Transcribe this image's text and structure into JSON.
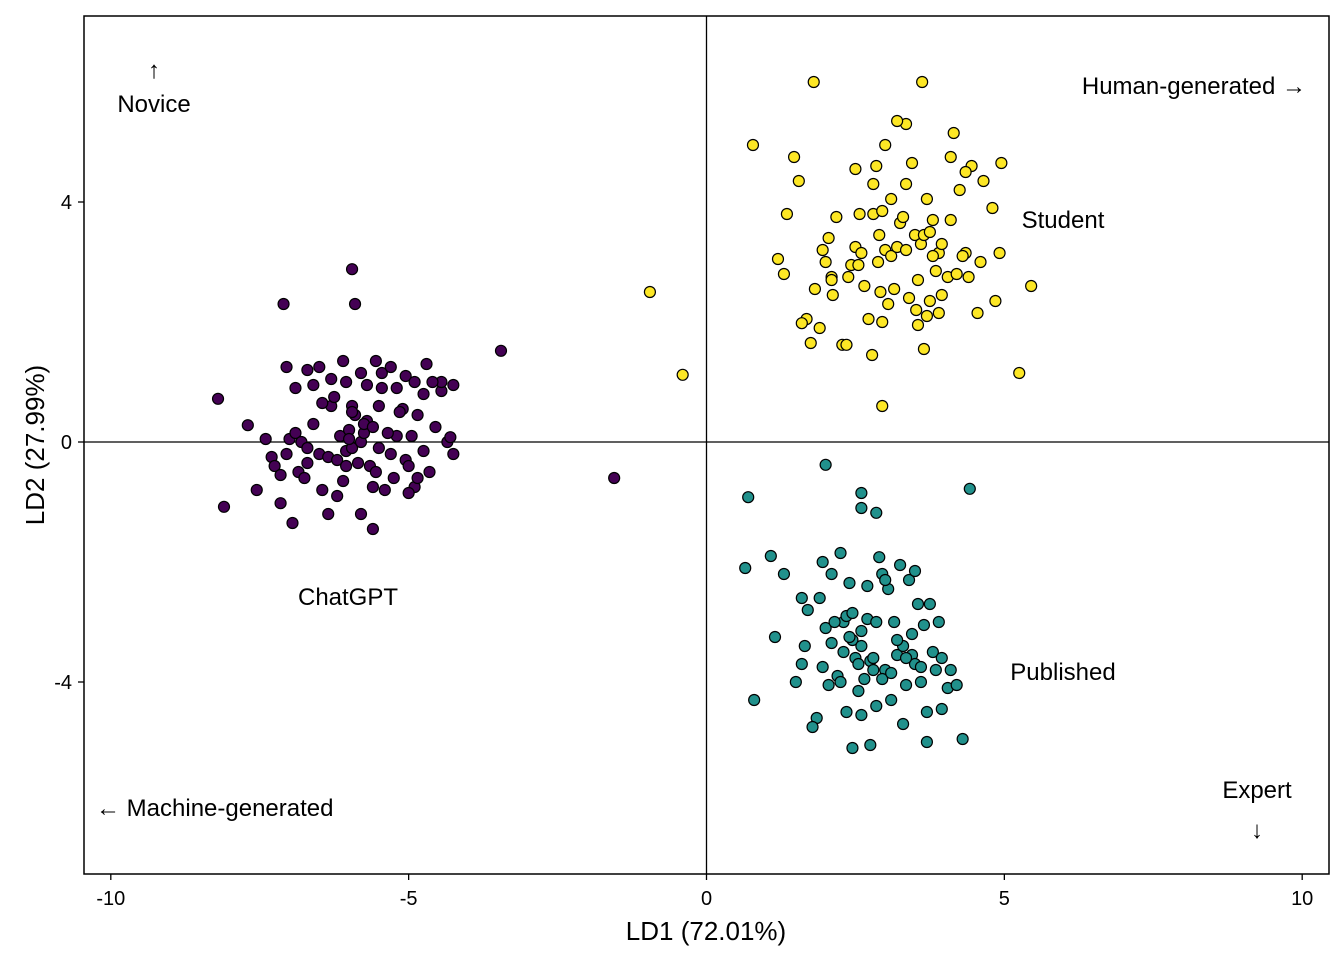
{
  "chart_data": {
    "type": "scatter",
    "title": "",
    "xlabel": "LD1 (72.01%)",
    "ylabel": "LD2 (27.99%)",
    "xlim": [
      -10.45,
      10.45
    ],
    "ylim": [
      -7.2,
      7.1
    ],
    "xticks": [
      -10,
      -5,
      0,
      5,
      10
    ],
    "xtick_labels": [
      "-10",
      "-5",
      "0",
      "5",
      "10"
    ],
    "yticks": [
      -4,
      0,
      4
    ],
    "ytick_labels": [
      "-4",
      "0",
      "4"
    ],
    "grid": false,
    "legend": "none",
    "reference_lines": {
      "x": 0,
      "y": 0
    },
    "annotations": [
      {
        "id": "novice",
        "arrow": "↑",
        "text": "Novice"
      },
      {
        "id": "human",
        "text": "Human-generated →"
      },
      {
        "id": "machine",
        "text": "← Machine-generated"
      },
      {
        "id": "expert",
        "text": "Expert",
        "arrow": "↓"
      }
    ],
    "series": [
      {
        "group_label": "ChatGPT",
        "color": "#440154",
        "points": [
          [
            -8.2,
            0.72
          ],
          [
            -8.1,
            -1.08
          ],
          [
            -7.7,
            0.28
          ],
          [
            -7.55,
            -0.8
          ],
          [
            -7.3,
            -0.25
          ],
          [
            -7.25,
            -0.4
          ],
          [
            -7.15,
            -0.55
          ],
          [
            -7.15,
            -1.02
          ],
          [
            -7.05,
            -0.2
          ],
          [
            -7.0,
            0.05
          ],
          [
            -6.95,
            -1.35
          ],
          [
            -6.9,
            0.15
          ],
          [
            -6.85,
            -0.5
          ],
          [
            -6.75,
            -0.6
          ],
          [
            -6.7,
            -0.35
          ],
          [
            -6.6,
            0.3
          ],
          [
            -6.5,
            -0.2
          ],
          [
            -6.35,
            -0.25
          ],
          [
            -6.3,
            0.6
          ],
          [
            -6.2,
            -0.3
          ],
          [
            -6.15,
            0.1
          ],
          [
            -6.05,
            -0.15
          ],
          [
            -6.0,
            0.2
          ],
          [
            -5.95,
            -0.1
          ],
          [
            -5.9,
            0.45
          ],
          [
            -5.85,
            -0.35
          ],
          [
            -5.8,
            0.0
          ],
          [
            -5.75,
            0.15
          ],
          [
            -5.7,
            0.35
          ],
          [
            -5.65,
            -0.4
          ],
          [
            -5.6,
            -0.75
          ],
          [
            -5.55,
            -0.5
          ],
          [
            -5.5,
            0.6
          ],
          [
            -5.45,
            0.9
          ],
          [
            -5.3,
            -0.2
          ],
          [
            -5.2,
            0.1
          ],
          [
            -5.1,
            0.55
          ],
          [
            -5.05,
            -0.3
          ],
          [
            -5.0,
            -0.4
          ],
          [
            -4.95,
            0.1
          ],
          [
            -4.9,
            -0.75
          ],
          [
            -4.85,
            0.45
          ],
          [
            -4.75,
            -0.15
          ],
          [
            -4.65,
            -0.5
          ],
          [
            -4.55,
            0.25
          ],
          [
            -4.45,
            0.85
          ],
          [
            -4.35,
            0.0
          ],
          [
            -4.3,
            0.08
          ],
          [
            -4.25,
            -0.2
          ],
          [
            -7.1,
            2.3
          ],
          [
            -6.6,
            0.95
          ],
          [
            -6.7,
            1.2
          ],
          [
            -6.5,
            1.25
          ],
          [
            -6.3,
            1.05
          ],
          [
            -6.1,
            1.35
          ],
          [
            -6.05,
            1.0
          ],
          [
            -5.95,
            0.6
          ],
          [
            -5.8,
            1.15
          ],
          [
            -5.7,
            0.95
          ],
          [
            -5.55,
            1.35
          ],
          [
            -5.45,
            1.15
          ],
          [
            -5.3,
            1.25
          ],
          [
            -5.2,
            0.9
          ],
          [
            -5.05,
            1.1
          ],
          [
            -4.9,
            1.0
          ],
          [
            -4.7,
            1.3
          ],
          [
            -4.45,
            1.0
          ],
          [
            -4.25,
            0.95
          ],
          [
            -3.45,
            1.52
          ],
          [
            -5.95,
            2.88
          ],
          [
            -5.9,
            2.3
          ],
          [
            -6.35,
            -1.2
          ],
          [
            -5.6,
            -1.45
          ],
          [
            -6.05,
            -0.4
          ],
          [
            -6.45,
            -0.8
          ],
          [
            -6.2,
            -0.9
          ],
          [
            -5.8,
            -1.2
          ],
          [
            -5.4,
            -0.8
          ],
          [
            -5.25,
            -0.6
          ],
          [
            -5.0,
            -0.85
          ],
          [
            -4.85,
            -0.6
          ],
          [
            -6.8,
            0.0
          ],
          [
            -6.9,
            0.9
          ],
          [
            -7.05,
            1.25
          ],
          [
            -7.4,
            0.05
          ],
          [
            -6.7,
            -0.1
          ],
          [
            -6.45,
            0.65
          ],
          [
            -6.1,
            -0.65
          ],
          [
            -5.75,
            0.3
          ],
          [
            -5.6,
            0.25
          ],
          [
            -5.35,
            0.15
          ],
          [
            -4.75,
            0.8
          ],
          [
            -4.6,
            1.0
          ],
          [
            -5.95,
            0.5
          ],
          [
            -6.25,
            0.75
          ],
          [
            -5.5,
            -0.1
          ],
          [
            -5.15,
            0.5
          ],
          [
            -6.0,
            0.05
          ],
          [
            -1.55,
            -0.6
          ]
        ]
      },
      {
        "group_label": "Student",
        "color": "#fde725",
        "points": [
          [
            0.78,
            4.95
          ],
          [
            1.2,
            3.05
          ],
          [
            1.3,
            2.8
          ],
          [
            1.35,
            3.8
          ],
          [
            1.47,
            4.75
          ],
          [
            1.55,
            4.35
          ],
          [
            1.68,
            2.05
          ],
          [
            1.75,
            1.65
          ],
          [
            1.82,
            2.55
          ],
          [
            1.9,
            1.9
          ],
          [
            1.95,
            3.2
          ],
          [
            2.0,
            3.0
          ],
          [
            2.05,
            3.4
          ],
          [
            2.1,
            2.75
          ],
          [
            2.12,
            2.45
          ],
          [
            2.18,
            3.75
          ],
          [
            2.28,
            1.62
          ],
          [
            2.35,
            1.62
          ],
          [
            2.38,
            2.75
          ],
          [
            2.43,
            2.95
          ],
          [
            2.5,
            3.25
          ],
          [
            2.57,
            3.8
          ],
          [
            2.65,
            2.6
          ],
          [
            2.72,
            2.05
          ],
          [
            2.78,
            1.45
          ],
          [
            2.8,
            3.8
          ],
          [
            2.85,
            4.6
          ],
          [
            2.88,
            3.0
          ],
          [
            2.92,
            2.5
          ],
          [
            2.95,
            3.85
          ],
          [
            3.0,
            3.2
          ],
          [
            3.05,
            2.3
          ],
          [
            3.1,
            3.1
          ],
          [
            3.15,
            2.55
          ],
          [
            3.2,
            3.25
          ],
          [
            3.25,
            3.65
          ],
          [
            3.3,
            3.75
          ],
          [
            3.35,
            5.3
          ],
          [
            3.45,
            4.65
          ],
          [
            3.5,
            3.45
          ],
          [
            3.52,
            2.2
          ],
          [
            3.55,
            1.95
          ],
          [
            3.6,
            3.3
          ],
          [
            3.65,
            3.45
          ],
          [
            3.7,
            2.1
          ],
          [
            3.75,
            3.5
          ],
          [
            3.8,
            3.7
          ],
          [
            3.85,
            2.85
          ],
          [
            3.9,
            3.15
          ],
          [
            3.95,
            3.3
          ],
          [
            4.05,
            2.75
          ],
          [
            4.1,
            3.7
          ],
          [
            4.15,
            5.15
          ],
          [
            4.25,
            4.2
          ],
          [
            4.35,
            3.15
          ],
          [
            4.4,
            2.75
          ],
          [
            4.45,
            4.6
          ],
          [
            4.55,
            2.15
          ],
          [
            4.6,
            3.0
          ],
          [
            4.65,
            4.35
          ],
          [
            4.8,
            3.9
          ],
          [
            4.85,
            2.35
          ],
          [
            4.92,
            3.15
          ],
          [
            4.95,
            4.65
          ],
          [
            5.25,
            1.15
          ],
          [
            5.45,
            2.6
          ],
          [
            1.8,
            6.0
          ],
          [
            3.62,
            6.0
          ],
          [
            3.2,
            5.35
          ],
          [
            3.0,
            4.95
          ],
          [
            3.1,
            4.05
          ],
          [
            2.8,
            4.3
          ],
          [
            2.5,
            4.55
          ],
          [
            3.35,
            4.3
          ],
          [
            4.1,
            4.75
          ],
          [
            4.35,
            4.5
          ],
          [
            3.7,
            4.05
          ],
          [
            2.55,
            2.95
          ],
          [
            2.9,
            3.45
          ],
          [
            3.35,
            3.2
          ],
          [
            3.8,
            3.1
          ],
          [
            4.2,
            2.8
          ],
          [
            3.55,
            2.7
          ],
          [
            2.95,
            2.0
          ],
          [
            3.65,
            1.55
          ],
          [
            3.75,
            2.35
          ],
          [
            3.95,
            2.45
          ],
          [
            3.4,
            2.4
          ],
          [
            2.95,
            0.6
          ],
          [
            2.1,
            2.7
          ],
          [
            1.6,
            1.98
          ],
          [
            2.6,
            3.15
          ],
          [
            3.9,
            2.15
          ],
          [
            4.3,
            3.1
          ],
          [
            -0.95,
            2.5
          ],
          [
            -0.4,
            1.12
          ]
        ]
      },
      {
        "group_label": "Published",
        "color": "#21918c",
        "points": [
          [
            0.65,
            -2.1
          ],
          [
            0.7,
            -0.92
          ],
          [
            0.8,
            -4.3
          ],
          [
            1.08,
            -1.9
          ],
          [
            1.15,
            -3.25
          ],
          [
            1.3,
            -2.2
          ],
          [
            1.5,
            -4.0
          ],
          [
            1.6,
            -3.7
          ],
          [
            1.65,
            -3.4
          ],
          [
            1.7,
            -2.8
          ],
          [
            1.85,
            -4.6
          ],
          [
            1.9,
            -2.6
          ],
          [
            1.95,
            -2.0
          ],
          [
            2.0,
            -3.1
          ],
          [
            2.05,
            -4.05
          ],
          [
            2.1,
            -3.35
          ],
          [
            2.2,
            -3.9
          ],
          [
            2.25,
            -1.85
          ],
          [
            2.3,
            -3.0
          ],
          [
            2.35,
            -2.9
          ],
          [
            2.4,
            -2.35
          ],
          [
            2.45,
            -3.3
          ],
          [
            2.5,
            -3.6
          ],
          [
            2.55,
            -4.15
          ],
          [
            2.6,
            -3.15
          ],
          [
            2.65,
            -3.95
          ],
          [
            2.7,
            -2.95
          ],
          [
            2.75,
            -3.65
          ],
          [
            2.8,
            -3.8
          ],
          [
            2.85,
            -4.4
          ],
          [
            2.9,
            -1.92
          ],
          [
            2.95,
            -2.2
          ],
          [
            3.0,
            -3.8
          ],
          [
            3.05,
            -2.45
          ],
          [
            3.1,
            -4.3
          ],
          [
            3.15,
            -3.0
          ],
          [
            3.2,
            -3.55
          ],
          [
            3.25,
            -2.05
          ],
          [
            3.3,
            -3.4
          ],
          [
            3.35,
            -4.05
          ],
          [
            3.4,
            -2.3
          ],
          [
            3.45,
            -3.55
          ],
          [
            3.5,
            -3.7
          ],
          [
            3.55,
            -2.7
          ],
          [
            3.6,
            -4.0
          ],
          [
            3.65,
            -3.05
          ],
          [
            3.7,
            -4.5
          ],
          [
            3.75,
            -2.7
          ],
          [
            3.8,
            -3.5
          ],
          [
            3.85,
            -3.8
          ],
          [
            3.9,
            -3.0
          ],
          [
            3.95,
            -3.6
          ],
          [
            4.05,
            -4.1
          ],
          [
            4.1,
            -3.8
          ],
          [
            4.2,
            -4.05
          ],
          [
            4.3,
            -4.95
          ],
          [
            2.0,
            -0.38
          ],
          [
            2.6,
            -0.85
          ],
          [
            2.6,
            -1.1
          ],
          [
            2.85,
            -1.18
          ],
          [
            4.42,
            -0.78
          ],
          [
            1.78,
            -4.75
          ],
          [
            2.45,
            -5.1
          ],
          [
            2.75,
            -5.05
          ],
          [
            3.7,
            -5.0
          ],
          [
            1.95,
            -3.75
          ],
          [
            2.3,
            -3.5
          ],
          [
            2.6,
            -3.4
          ],
          [
            2.85,
            -3.0
          ],
          [
            3.2,
            -3.3
          ],
          [
            2.45,
            -2.85
          ],
          [
            2.4,
            -3.25
          ],
          [
            2.55,
            -3.7
          ],
          [
            2.95,
            -3.95
          ],
          [
            3.35,
            -3.6
          ],
          [
            3.6,
            -3.75
          ],
          [
            2.1,
            -2.2
          ],
          [
            2.7,
            -2.4
          ],
          [
            3.0,
            -2.3
          ],
          [
            3.5,
            -2.15
          ],
          [
            2.35,
            -4.5
          ],
          [
            2.6,
            -4.55
          ],
          [
            3.3,
            -4.7
          ],
          [
            3.95,
            -4.45
          ],
          [
            1.6,
            -2.6
          ],
          [
            2.25,
            -4.0
          ],
          [
            3.1,
            -3.85
          ],
          [
            3.45,
            -3.2
          ],
          [
            2.15,
            -3.0
          ],
          [
            2.8,
            -3.6
          ]
        ]
      }
    ]
  }
}
